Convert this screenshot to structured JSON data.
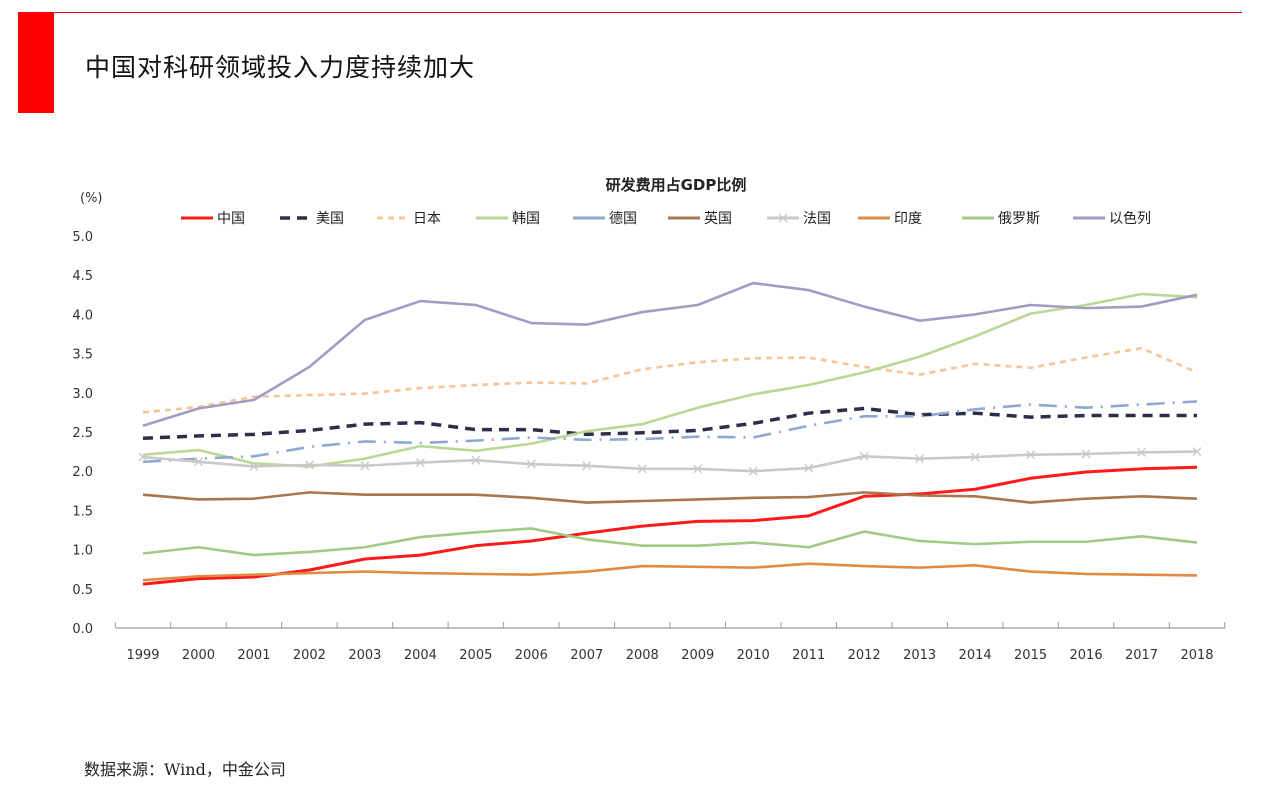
{
  "page": {
    "title": "中国对科研领域投入力度持续加大",
    "source": "数据来源：Wind，中金公司",
    "accent_color": "#ff0000"
  },
  "chart_data": {
    "type": "line",
    "title": "研发费用占GDP比例",
    "ylabel": "(%)",
    "xlabel": "",
    "ylim": [
      0,
      5
    ],
    "yticks": [
      "0.0",
      "0.5",
      "1.0",
      "1.5",
      "2.0",
      "2.5",
      "3.0",
      "3.5",
      "4.0",
      "4.5",
      "5.0"
    ],
    "grid": false,
    "legend": "top",
    "categories": [
      "1999",
      "2000",
      "2001",
      "2002",
      "2003",
      "2004",
      "2005",
      "2006",
      "2007",
      "2008",
      "2009",
      "2010",
      "2011",
      "2012",
      "2013",
      "2014",
      "2015",
      "2016",
      "2017",
      "2018"
    ],
    "series": [
      {
        "name": "中国",
        "color": "#ff1a1a",
        "style": "solid",
        "values": [
          0.56,
          0.63,
          0.65,
          0.74,
          0.88,
          0.93,
          1.05,
          1.11,
          1.21,
          1.3,
          1.36,
          1.37,
          1.43,
          1.68,
          1.71,
          1.77,
          1.91,
          1.99,
          2.03,
          2.05
        ]
      },
      {
        "name": "美国",
        "color": "#2e2e48",
        "style": "dash",
        "values": [
          2.42,
          2.45,
          2.47,
          2.52,
          2.6,
          2.62,
          2.53,
          2.53,
          2.47,
          2.49,
          2.52,
          2.61,
          2.74,
          2.8,
          2.72,
          2.74,
          2.69,
          2.71,
          2.71,
          2.71
        ]
      },
      {
        "name": "日本",
        "color": "#f5c497",
        "style": "dot",
        "values": [
          2.75,
          2.82,
          2.95,
          2.97,
          2.99,
          3.06,
          3.1,
          3.13,
          3.12,
          3.3,
          3.39,
          3.44,
          3.45,
          3.33,
          3.23,
          3.37,
          3.32,
          3.45,
          3.57,
          3.26
        ]
      },
      {
        "name": "韩国",
        "color": "#b9d795",
        "style": "solid",
        "values": [
          2.21,
          2.27,
          2.1,
          2.06,
          2.16,
          2.32,
          2.26,
          2.35,
          2.51,
          2.6,
          2.81,
          2.98,
          3.1,
          3.26,
          3.46,
          3.72,
          4.01,
          4.12,
          4.26,
          4.22
        ]
      },
      {
        "name": "德国",
        "color": "#8eaad2",
        "style": "dashdot",
        "values": [
          2.12,
          2.16,
          2.19,
          2.31,
          2.38,
          2.36,
          2.39,
          2.43,
          2.4,
          2.41,
          2.44,
          2.43,
          2.58,
          2.7,
          2.7,
          2.79,
          2.85,
          2.81,
          2.85,
          2.89
        ]
      },
      {
        "name": "英国",
        "color": "#a8764f",
        "style": "solid",
        "values": [
          1.7,
          1.64,
          1.65,
          1.73,
          1.7,
          1.7,
          1.7,
          1.66,
          1.6,
          1.62,
          1.64,
          1.66,
          1.67,
          1.73,
          1.69,
          1.68,
          1.6,
          1.65,
          1.68,
          1.65
        ]
      },
      {
        "name": "法国",
        "color": "#c9c9c9",
        "style": "cross",
        "values": [
          2.18,
          2.12,
          2.06,
          2.08,
          2.07,
          2.11,
          2.14,
          2.09,
          2.07,
          2.03,
          2.03,
          2.0,
          2.04,
          2.19,
          2.16,
          2.18,
          2.21,
          2.22,
          2.24,
          2.25
        ]
      },
      {
        "name": "印度",
        "color": "#e08a42",
        "style": "solid",
        "values": [
          0.61,
          0.66,
          0.68,
          0.7,
          0.72,
          0.7,
          0.69,
          0.68,
          0.72,
          0.79,
          0.78,
          0.77,
          0.82,
          0.79,
          0.77,
          0.8,
          0.72,
          0.69,
          0.68,
          0.67
        ]
      },
      {
        "name": "俄罗斯",
        "color": "#a3c986",
        "style": "solid",
        "values": [
          0.95,
          1.03,
          0.93,
          0.97,
          1.03,
          1.16,
          1.22,
          1.27,
          1.13,
          1.05,
          1.05,
          1.09,
          1.03,
          1.23,
          1.11,
          1.07,
          1.1,
          1.1,
          1.17,
          1.09
        ]
      },
      {
        "name": "以色列",
        "color": "#a29cc4",
        "style": "solid",
        "values": [
          2.58,
          2.8,
          2.91,
          3.33,
          3.93,
          4.17,
          4.12,
          3.89,
          3.87,
          4.03,
          4.12,
          4.4,
          4.31,
          4.1,
          3.92,
          4.0,
          4.12,
          4.08,
          4.1,
          4.25
        ]
      }
    ]
  }
}
